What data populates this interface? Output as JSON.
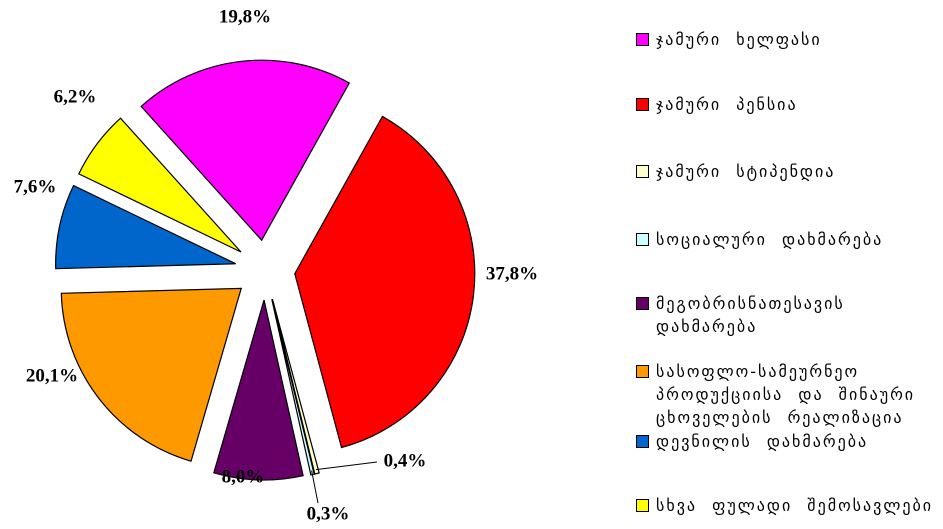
{
  "chart_data": {
    "type": "pie",
    "categories": [
      "ჯამური ხელფასი",
      "ჯამური პენსია",
      "ჯამური სტიპენდია",
      "სოციალური დახმარება",
      "მეგობრისნათესავის დახმარება",
      "სასოფლო-სამეურნეო პროდუქციისა და შინაური ცხოველების რეალიზაცია",
      "დევნილის დახმარება",
      "სხვა ფულადი შემოსავლები"
    ],
    "values": [
      19.8,
      37.8,
      0.4,
      0.3,
      8.0,
      20.1,
      7.6,
      6.2
    ],
    "value_labels": [
      "19,8%",
      "37,8%",
      "0,4%",
      "0,3%",
      "8,0%",
      "20,1%",
      "7,6%",
      "6,2%"
    ],
    "colors": [
      "#ff00ff",
      "#ff0000",
      "#ffffcc",
      "#ccffff",
      "#660066",
      "#ff9900",
      "#0066cc",
      "#ffff00"
    ],
    "legend": "right"
  }
}
